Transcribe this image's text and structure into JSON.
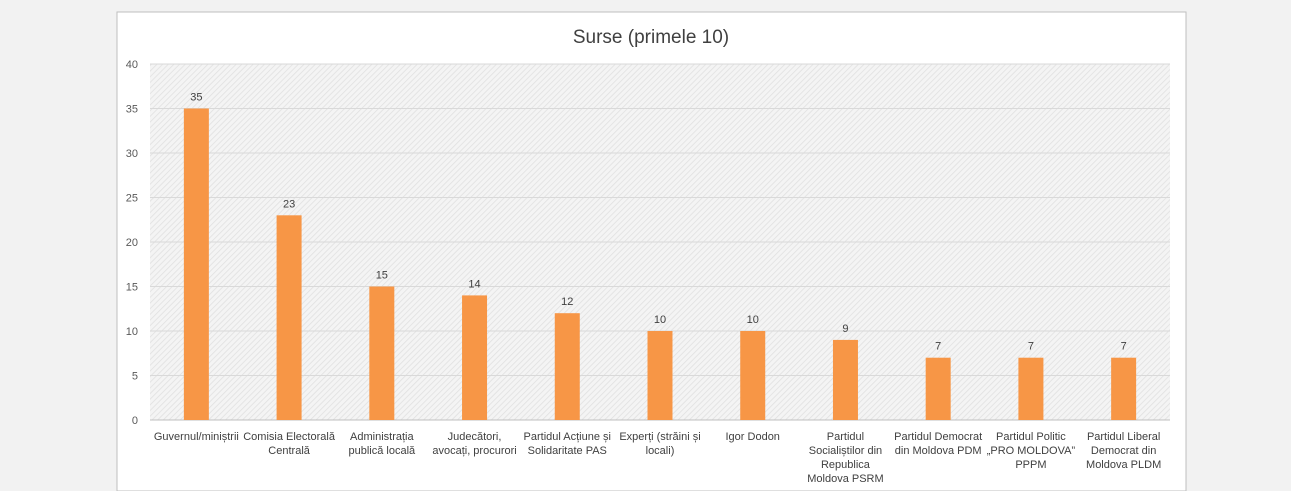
{
  "chart_data": {
    "type": "bar",
    "title": "Surse (primele 10)",
    "categories": [
      "Guvernul/miniștrii",
      "Comisia Electorală Centrală",
      "Administrația publică locală",
      "Judecători, avocați, procurori",
      "Partidul Acțiune și Solidaritate PAS",
      "Experți (străini și locali)",
      "Igor Dodon",
      "Partidul Socialiștilor din Republica Moldova PSRM",
      "Partidul Democrat din Moldova PDM",
      "Partidul Politic „PRO MOLDOVA” PPPM",
      "Partidul Liberal Democrat din Moldova PLDM"
    ],
    "category_lines": [
      [
        "Guvernul/miniștrii"
      ],
      [
        "Comisia Electorală",
        "Centrală"
      ],
      [
        "Administrația",
        "publică locală"
      ],
      [
        "Judecători,",
        "avocați, procurori"
      ],
      [
        "Partidul Acțiune și",
        "Solidaritate PAS"
      ],
      [
        "Experți (străini și",
        "locali)"
      ],
      [
        "Igor Dodon"
      ],
      [
        "Partidul",
        "Socialiștilor din",
        "Republica",
        "Moldova PSRM"
      ],
      [
        "Partidul Democrat",
        "din Moldova PDM"
      ],
      [
        "Partidul Politic",
        "„PRO MOLDOVA”",
        "PPPM"
      ],
      [
        "Partidul Liberal",
        "Democrat din",
        "Moldova PLDM"
      ]
    ],
    "values": [
      35,
      23,
      15,
      14,
      12,
      10,
      10,
      9,
      7,
      7,
      7
    ],
    "ylim": [
      0,
      40
    ],
    "yticks": [
      0,
      5,
      10,
      15,
      20,
      25,
      30,
      35,
      40
    ],
    "xlabel": "",
    "ylabel": "",
    "grid": true,
    "bar_color": "#f79646",
    "legend": "none"
  }
}
